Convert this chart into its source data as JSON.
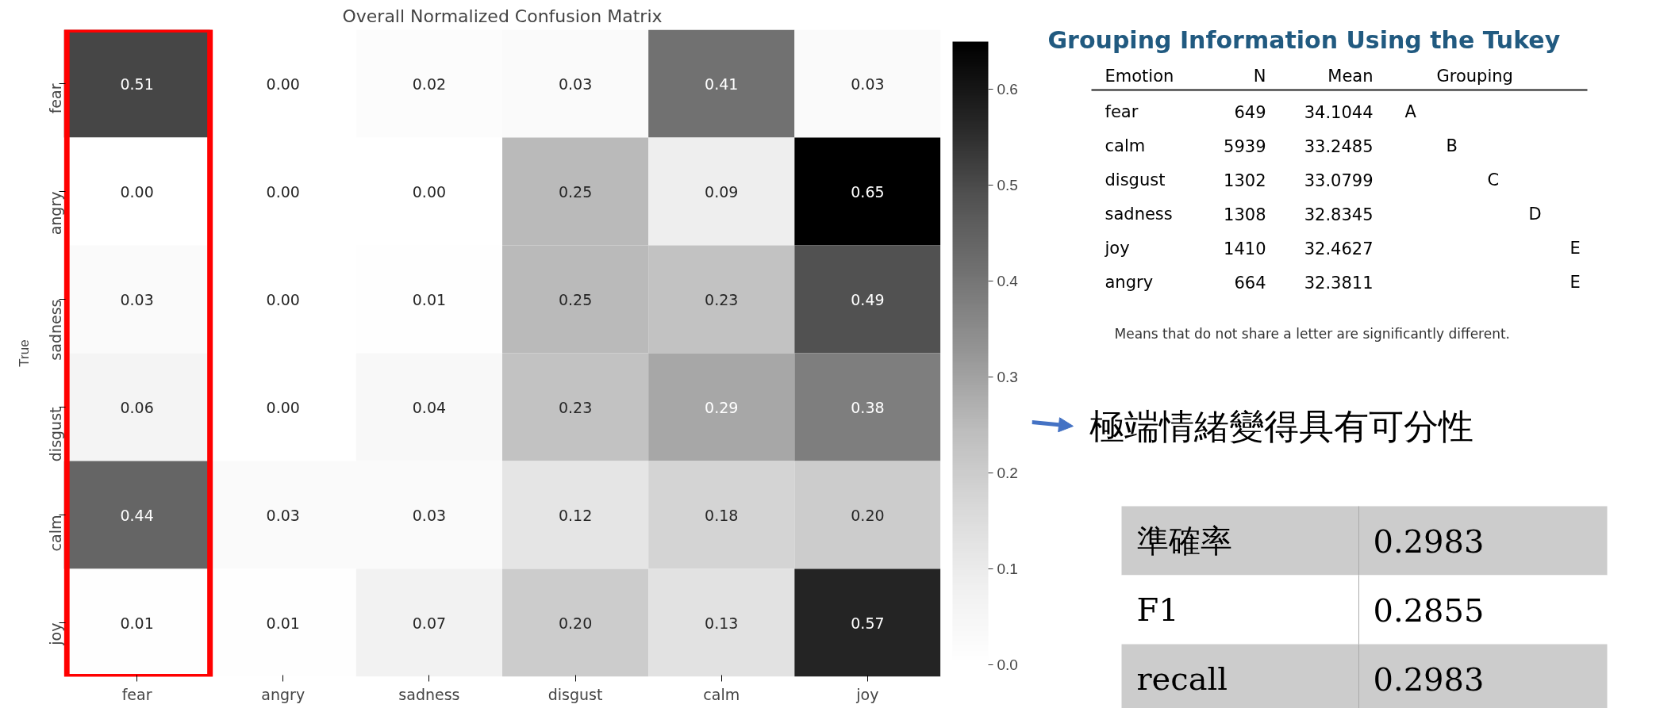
{
  "chart_data": [
    {
      "type": "heatmap",
      "title": "Overall Normalized Confusion Matrix",
      "ylabel": "True",
      "categories": [
        "fear",
        "angry",
        "sadness",
        "disgust",
        "calm",
        "joy"
      ],
      "y_categories": [
        "fear",
        "angry",
        "sadness",
        "disgust",
        "calm",
        "joy"
      ],
      "cells": [
        [
          0.51,
          0.0,
          0.02,
          0.03,
          0.41,
          0.03
        ],
        [
          0.0,
          0.0,
          0.0,
          0.25,
          0.09,
          0.65
        ],
        [
          0.03,
          0.0,
          0.01,
          0.25,
          0.23,
          0.49
        ],
        [
          0.06,
          0.0,
          0.04,
          0.23,
          0.29,
          0.38
        ],
        [
          0.44,
          0.03,
          0.03,
          0.12,
          0.18,
          0.2
        ],
        [
          0.01,
          0.01,
          0.07,
          0.2,
          0.13,
          0.57
        ]
      ],
      "cell_labels": [
        [
          "0.51",
          "0.00",
          "0.02",
          "0.03",
          "0.41",
          "0.03"
        ],
        [
          "0.00",
          "0.00",
          "0.00",
          "0.25",
          "0.09",
          "0.65"
        ],
        [
          "0.03",
          "0.00",
          "0.01",
          "0.25",
          "0.23",
          "0.49"
        ],
        [
          "0.06",
          "0.00",
          "0.04",
          "0.23",
          "0.29",
          "0.38"
        ],
        [
          "0.44",
          "0.03",
          "0.03",
          "0.12",
          "0.18",
          "0.20"
        ],
        [
          "0.01",
          "0.01",
          "0.07",
          "0.20",
          "0.13",
          "0.57"
        ]
      ],
      "clim": [
        0,
        0.65
      ],
      "cticks": [
        {
          "value": 0,
          "label": "0.0"
        },
        0.1,
        0.2,
        0.3,
        0.4,
        0.5,
        0.6
      ]
    },
    {
      "type": "other",
      "title": "Grouping Information Using the Tukey",
      "ylabel": "Emotion",
      "categories": [
        "fear",
        "calm",
        "disgust",
        "sadness",
        "joy",
        "angry"
      ],
      "series": [
        {
          "name": "N",
          "values": [
            649,
            5939,
            1302,
            1308,
            1410,
            664
          ]
        },
        {
          "name": "Mean",
          "values": [
            34.1044,
            33.2485,
            33.0799,
            32.8345,
            32.4627,
            32.3811
          ]
        },
        {
          "name": "Grouping",
          "values": [
            null,
            null,
            null,
            null,
            null,
            null
          ],
          "value_labels": [
            "A",
            "B",
            "C",
            "D",
            "E",
            "E"
          ]
        }
      ],
      "data_labels": true,
      "annotations": [
        "Means that do not share a letter are significantly different."
      ]
    },
    {
      "type": "other",
      "annotations": [
        "極端情緒變得具有可分性"
      ]
    },
    {
      "type": "other",
      "categories": [
        "準確率",
        "F1",
        "recall"
      ],
      "values": [
        0.2983,
        0.2855,
        0.2983
      ],
      "data_labels": true
    }
  ]
}
